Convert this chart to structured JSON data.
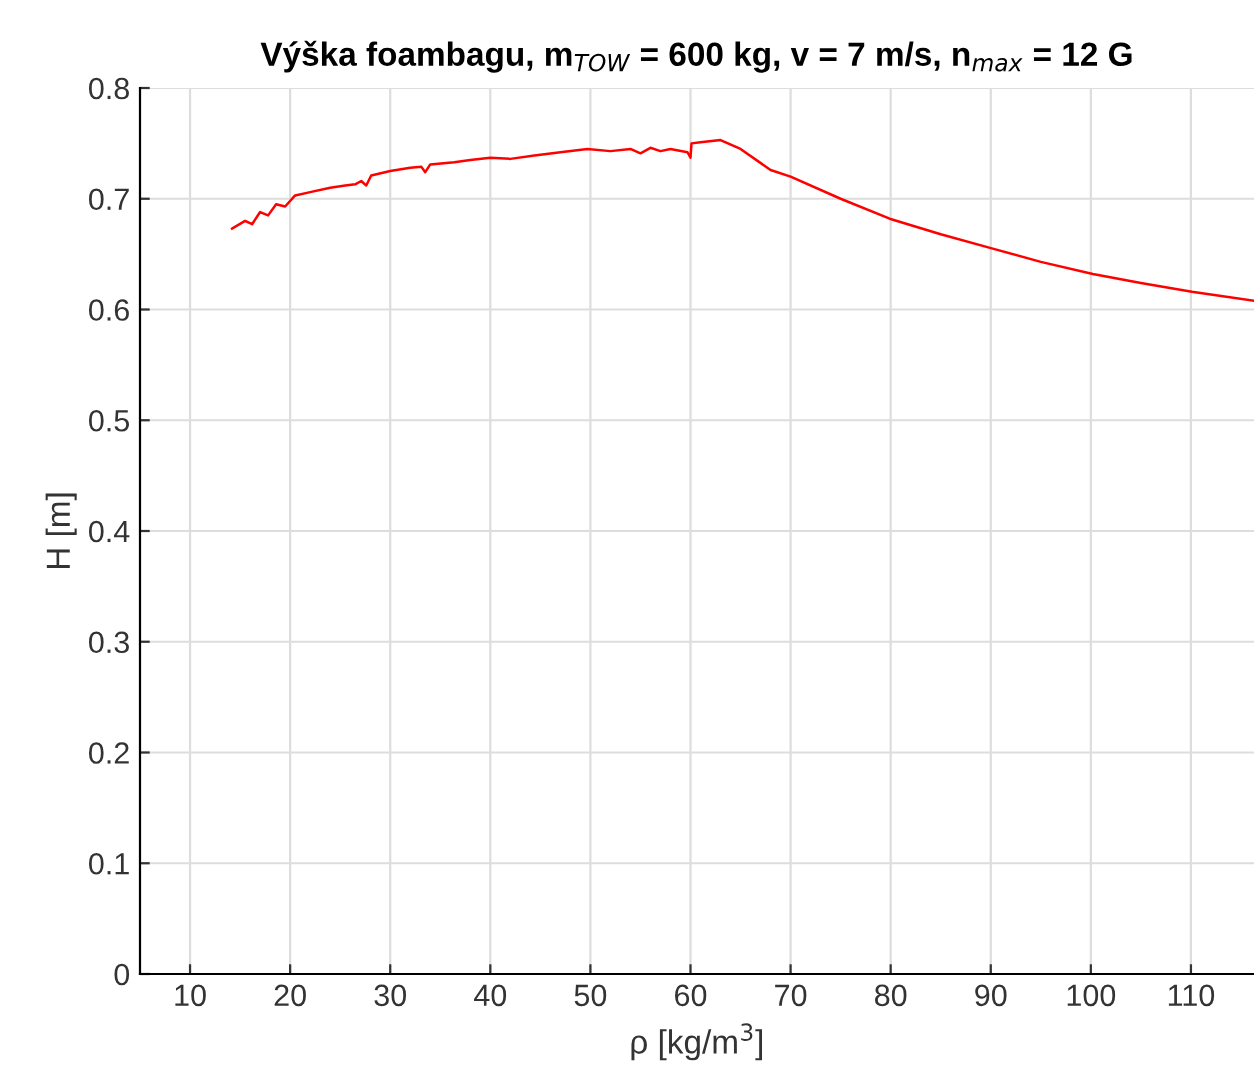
{
  "chart_data": {
    "type": "line",
    "title": "Výška foambagu, m$_{TOW}$ = 600 kg, v = 7 m/s, n$_{max}$ = 12 G",
    "xlabel": "ρ [kg/m$^{3}$]",
    "ylabel": "H [m]",
    "series": [
      {
        "color": "#ff0000",
        "x": [
          14.2,
          15.5,
          16.2,
          17.0,
          17.8,
          18.6,
          19.5,
          20.5,
          22,
          24,
          25.5,
          26.5,
          27.1,
          27.6,
          28.1,
          30,
          32,
          33.1,
          33.5,
          34,
          36.4,
          38,
          40,
          42,
          44.4,
          47,
          49.7,
          52,
          54,
          55,
          56,
          57,
          58,
          59.7,
          60,
          60.1,
          61,
          63,
          65,
          68,
          70,
          75,
          79.9,
          85,
          90.2,
          95,
          100.2,
          105,
          110.1,
          116.2
        ],
        "values": [
          0.673,
          0.68,
          0.677,
          0.688,
          0.685,
          0.695,
          0.693,
          0.703,
          0.706,
          0.71,
          0.712,
          0.713,
          0.716,
          0.712,
          0.721,
          0.725,
          0.728,
          0.729,
          0.724,
          0.731,
          0.733,
          0.735,
          0.737,
          0.736,
          0.739,
          0.742,
          0.745,
          0.743,
          0.745,
          0.741,
          0.746,
          0.743,
          0.745,
          0.742,
          0.737,
          0.75,
          0.751,
          0.753,
          0.745,
          0.726,
          0.72,
          0.7,
          0.682,
          0.668,
          0.655,
          0.643,
          0.632,
          0.624,
          0.616,
          0.608
        ]
      }
    ],
    "xlim": [
      5,
      116.3
    ],
    "ylim": [
      0,
      0.8
    ],
    "xticks": [
      10,
      20,
      30,
      40,
      50,
      60,
      70,
      80,
      90,
      100,
      110
    ],
    "yticks": [
      0,
      0.1,
      0.2,
      0.3,
      0.4,
      0.5,
      0.6,
      0.7,
      0.8
    ],
    "grid": true,
    "legend": false,
    "marker": "none",
    "line_style": "solid"
  }
}
